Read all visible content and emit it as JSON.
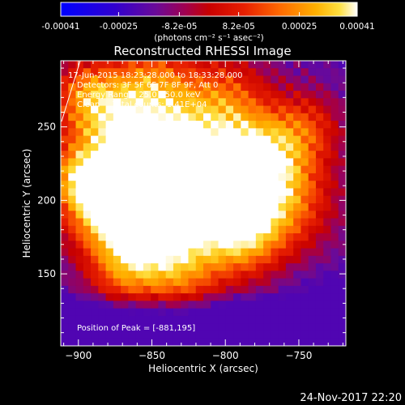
{
  "chart_data": {
    "type": "heatmap",
    "title": "Reconstructed RHESSI Image",
    "xlabel": "Heliocentric X (arcsec)",
    "ylabel": "Heliocentric Y (arcsec)",
    "xlim": [
      -912,
      -718
    ],
    "ylim": [
      101,
      295
    ],
    "x_ticks": [
      -900,
      -850,
      -800,
      -750
    ],
    "x_tick_labels": [
      "−900",
      "−850",
      "−800",
      "−750"
    ],
    "y_ticks": [
      150,
      200,
      250
    ],
    "y_tick_labels": [
      "150",
      "200",
      "250"
    ],
    "colorbar": {
      "range": [
        -0.00041,
        0.00041
      ],
      "tick_values": [
        -0.00041,
        -0.00025,
        -8.2e-05,
        8.2e-05,
        0.00025,
        0.00041
      ],
      "tick_labels": [
        "-0.00041",
        "-0.00025",
        "-8.2e-05",
        "8.2e-05",
        "0.00025",
        "0.00041"
      ],
      "units_label": "(photons cm⁻² s⁻¹ asec⁻²)"
    },
    "annotations": {
      "time_range": "17-Jun-2015 18:23:28.000 to 18:33:28.000",
      "detectors": "Detectors: 3F 5F 6F 7F 8F 9F, Att 0",
      "energy_range": "Energy Range: 25.0 - 50.0 keV",
      "clean_counts": "Clean     Total counts: 1.41E+04",
      "peak_position": "Position of Peak = [-881,195]"
    },
    "peak": [
      -881,
      195
    ],
    "grid_size": 38,
    "grid_min": -0.0002,
    "grid_max": 0.00041
  },
  "footer_date": "24-Nov-2017 22:20"
}
